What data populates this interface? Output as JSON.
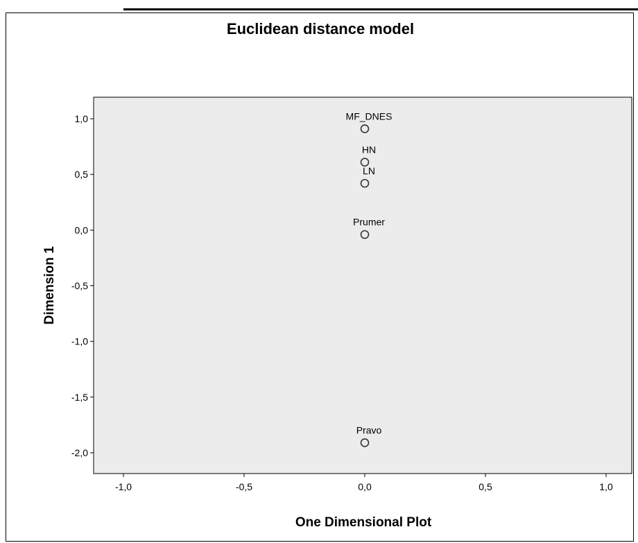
{
  "chart_data": {
    "type": "scatter",
    "title": "Euclidean distance model",
    "xlabel": "One Dimensional Plot",
    "ylabel": "Dimension 1",
    "xlim": [
      -1.0,
      1.0
    ],
    "ylim": [
      -2.0,
      1.0
    ],
    "x_ticks": [
      "-1,0",
      "-0,5",
      "0,0",
      "0,5",
      "1,0"
    ],
    "y_ticks": [
      "1,0",
      "0,5",
      "0,0",
      "-0,5",
      "-1,0",
      "-1,5",
      "-2,0"
    ],
    "grid": false,
    "points": [
      {
        "label": "MF_DNES",
        "x": 0.0,
        "y": 0.91
      },
      {
        "label": "HN",
        "x": 0.0,
        "y": 0.61
      },
      {
        "label": "LN",
        "x": 0.0,
        "y": 0.42
      },
      {
        "label": "Prumer",
        "x": 0.0,
        "y": -0.04
      },
      {
        "label": "Pravo",
        "x": 0.0,
        "y": -1.91
      }
    ],
    "colors": {
      "plot_background": "#ececec",
      "marker_stroke": "#333333"
    }
  }
}
